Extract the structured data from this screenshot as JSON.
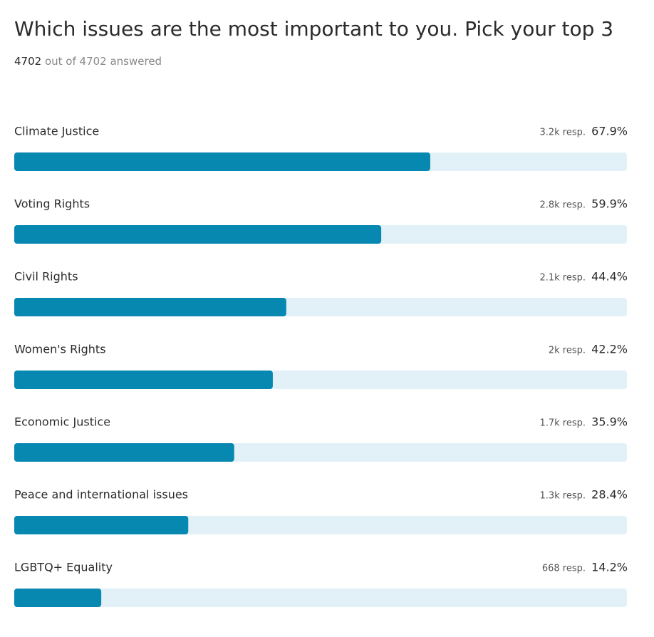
{
  "chart_data": {
    "type": "bar",
    "orientation": "horizontal",
    "title": "Which issues are the most important to you. Pick your top 3",
    "answered_count": "4702",
    "answered_text": "out of 4702 answered",
    "categories": [
      "Climate Justice",
      "Voting Rights",
      "Civil Rights",
      "Women's Rights",
      "Economic Justice",
      "Peace and international issues",
      "LGBTQ+ Equality"
    ],
    "values": [
      67.9,
      59.9,
      44.4,
      42.2,
      35.9,
      28.4,
      14.2
    ],
    "value_labels": [
      "67.9%",
      "59.9%",
      "44.4%",
      "42.2%",
      "35.9%",
      "28.4%",
      "14.2%"
    ],
    "responses": [
      "3.2k resp.",
      "2.8k resp.",
      "2.1k resp.",
      "2k resp.",
      "1.7k resp.",
      "1.3k resp.",
      "668 resp."
    ],
    "color": "#0788b0",
    "track_color": "#e2f1f8",
    "xlim": [
      0,
      100
    ]
  }
}
